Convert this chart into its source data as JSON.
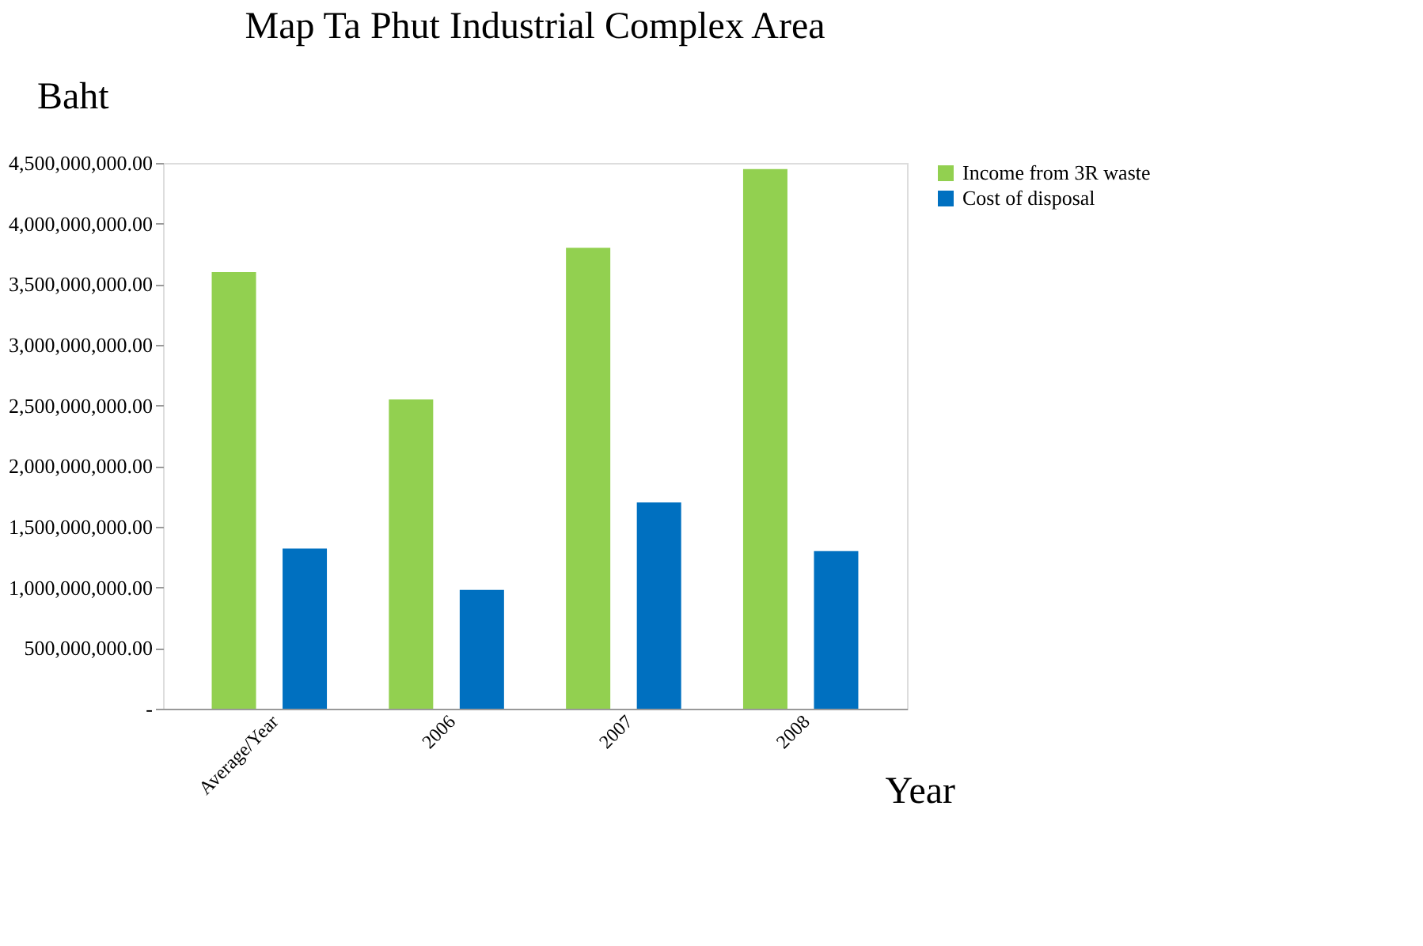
{
  "chart_data": {
    "type": "bar",
    "title": "Map Ta Phut Industrial Complex Area",
    "ylabel": "Baht",
    "xlabel": "Year",
    "categories": [
      "Average/Year",
      "2006",
      "2007",
      "2008"
    ],
    "series": [
      {
        "name": "Income from 3R waste",
        "color": "#92d050",
        "values": [
          3600000000,
          2550000000,
          3800000000,
          4450000000
        ]
      },
      {
        "name": "Cost of disposal",
        "color": "#0070c0",
        "values": [
          1320000000,
          980000000,
          1700000000,
          1300000000
        ]
      }
    ],
    "ylim": [
      0,
      4500000000
    ],
    "yticks": [
      {
        "value": 0,
        "label": "-"
      },
      {
        "value": 500000000,
        "label": "500,000,000.00"
      },
      {
        "value": 1000000000,
        "label": "1,000,000,000.00"
      },
      {
        "value": 1500000000,
        "label": "1,500,000,000.00"
      },
      {
        "value": 2000000000,
        "label": "2,000,000,000.00"
      },
      {
        "value": 2500000000,
        "label": "2,500,000,000.00"
      },
      {
        "value": 3000000000,
        "label": "3,000,000,000.00"
      },
      {
        "value": 3500000000,
        "label": "3,500,000,000.00"
      },
      {
        "value": 4000000000,
        "label": "4,000,000,000.00"
      },
      {
        "value": 4500000000,
        "label": "4,500,000,000.00"
      }
    ],
    "grid": false,
    "legend": "right"
  }
}
